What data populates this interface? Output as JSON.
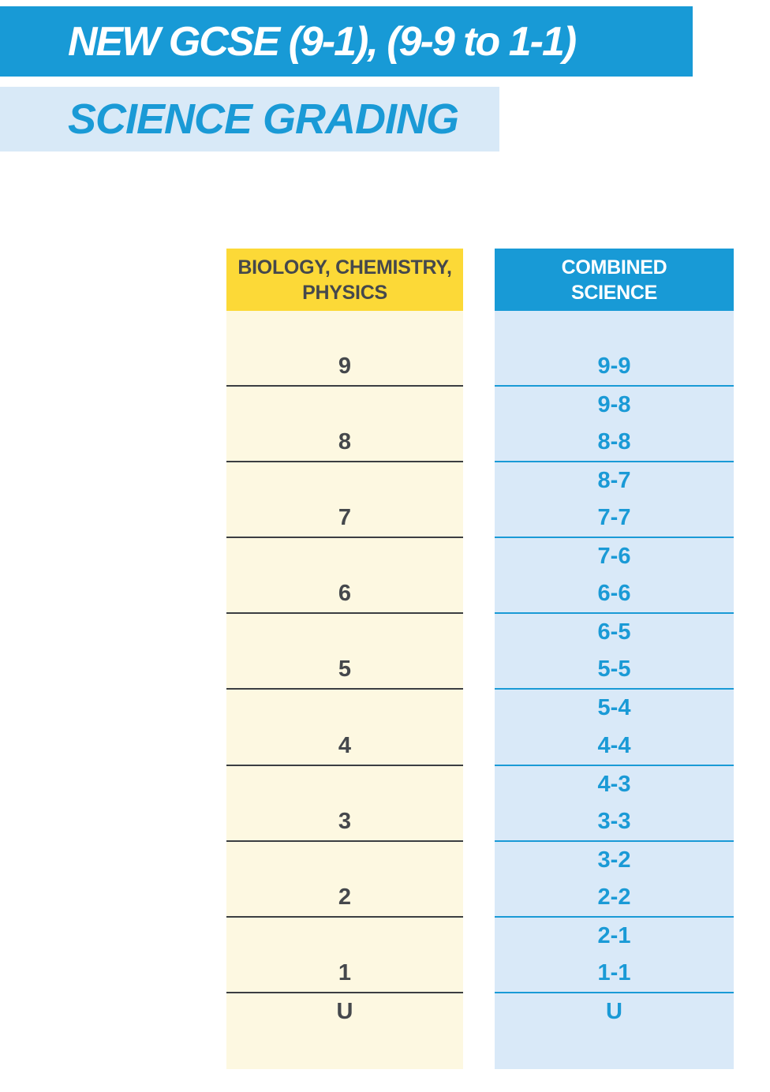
{
  "page": {
    "title_banner": "NEW GCSE (9-1), (9-9 to 1-1)",
    "subtitle_banner": "SCIENCE GRADING"
  },
  "colors": {
    "banner_blue": "#189ad6",
    "banner_light_blue": "#d8e9f7",
    "accent_blue": "#1a9ad6",
    "header_yellow": "#fcd937",
    "row_pale_yellow": "#fdf8e1",
    "row_light_blue": "#d9e9f8",
    "dark_text": "#45484c",
    "dark_line": "#3b3e42"
  },
  "table": {
    "left_header_lines": [
      "BIOLOGY, CHEMISTRY,",
      "PHYSICS"
    ],
    "right_header_lines": [
      "COMBINED",
      "SCIENCE"
    ],
    "sections": [
      {
        "single": [
          null,
          "9"
        ],
        "combined": [
          null,
          "9-9"
        ]
      },
      {
        "single": [
          null,
          "8"
        ],
        "combined": [
          "9-8",
          "8-8"
        ]
      },
      {
        "single": [
          null,
          "7"
        ],
        "combined": [
          "8-7",
          "7-7"
        ]
      },
      {
        "single": [
          null,
          "6"
        ],
        "combined": [
          "7-6",
          "6-6"
        ]
      },
      {
        "single": [
          null,
          "5"
        ],
        "combined": [
          "6-5",
          "5-5"
        ]
      },
      {
        "single": [
          null,
          "4"
        ],
        "combined": [
          "5-4",
          "4-4"
        ]
      },
      {
        "single": [
          null,
          "3"
        ],
        "combined": [
          "4-3",
          "3-3"
        ]
      },
      {
        "single": [
          null,
          "2"
        ],
        "combined": [
          "3-2",
          "2-2"
        ]
      },
      {
        "single": [
          null,
          "1"
        ],
        "combined": [
          "2-1",
          "1-1"
        ]
      },
      {
        "single": [
          "U",
          null
        ],
        "combined": [
          "U",
          null
        ]
      }
    ]
  }
}
